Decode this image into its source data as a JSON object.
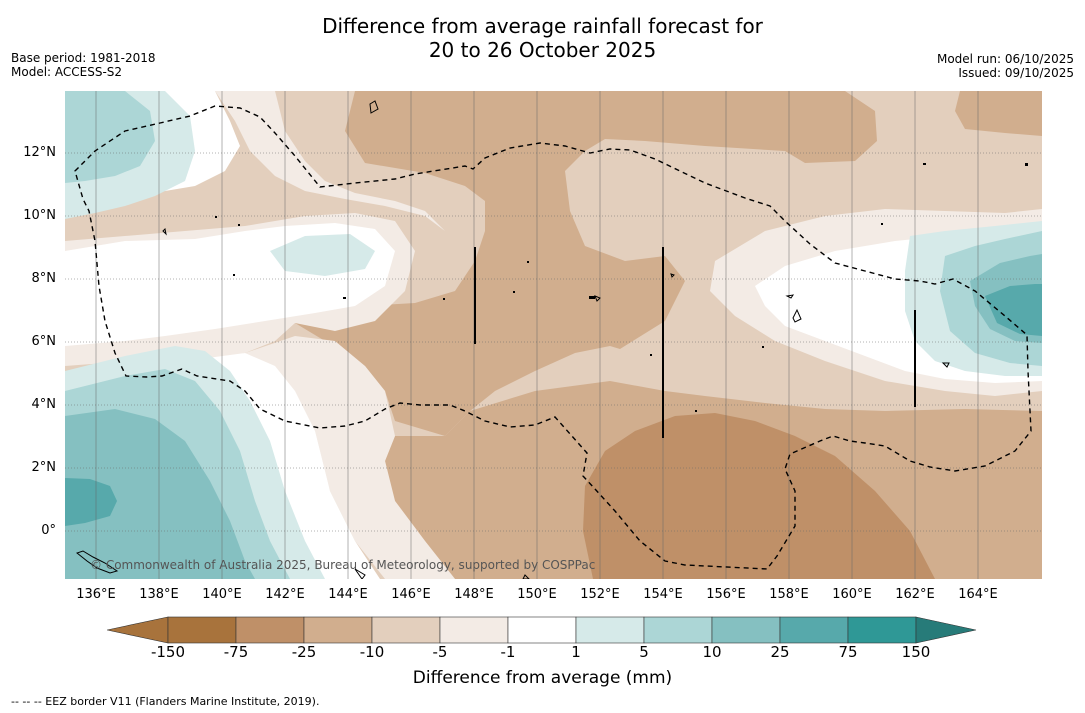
{
  "title": {
    "line1": "Difference from average rainfall forecast for",
    "line2": "20 to 26 October 2025"
  },
  "meta": {
    "base_period": "Base period: 1981-2018",
    "model": "Model: ACCESS-S2",
    "model_run": "Model run: 06/10/2025",
    "issued": "Issued: 09/10/2025"
  },
  "map": {
    "lat_labels": [
      "12°N",
      "10°N",
      "8°N",
      "6°N",
      "4°N",
      "2°N",
      "0°"
    ],
    "lon_labels": [
      "136°E",
      "138°E",
      "140°E",
      "142°E",
      "144°E",
      "146°E",
      "148°E",
      "150°E",
      "152°E",
      "154°E",
      "156°E",
      "158°E",
      "160°E",
      "162°E",
      "164°E"
    ],
    "copyright": "© Commonwealth of Australia 2025, Bureau of Meteorology, supported by COSPPac"
  },
  "colorbar": {
    "title": "Difference from average (mm)",
    "boundaries": [
      "-150",
      "-75",
      "-25",
      "-10",
      "-5",
      "-1",
      "1",
      "5",
      "10",
      "25",
      "75",
      "150"
    ],
    "colors": [
      "#a8733c",
      "#bf9068",
      "#d1ae8e",
      "#e3cfbd",
      "#f3ebe5",
      "#ffffff",
      "#d6eae9",
      "#acd6d6",
      "#85c0c1",
      "#57a9ab",
      "#2f9896",
      "#277b79"
    ]
  },
  "legend": {
    "eez_note": "--  --  -- EEZ border V11 (Flanders Marine Institute, 2019)."
  }
}
